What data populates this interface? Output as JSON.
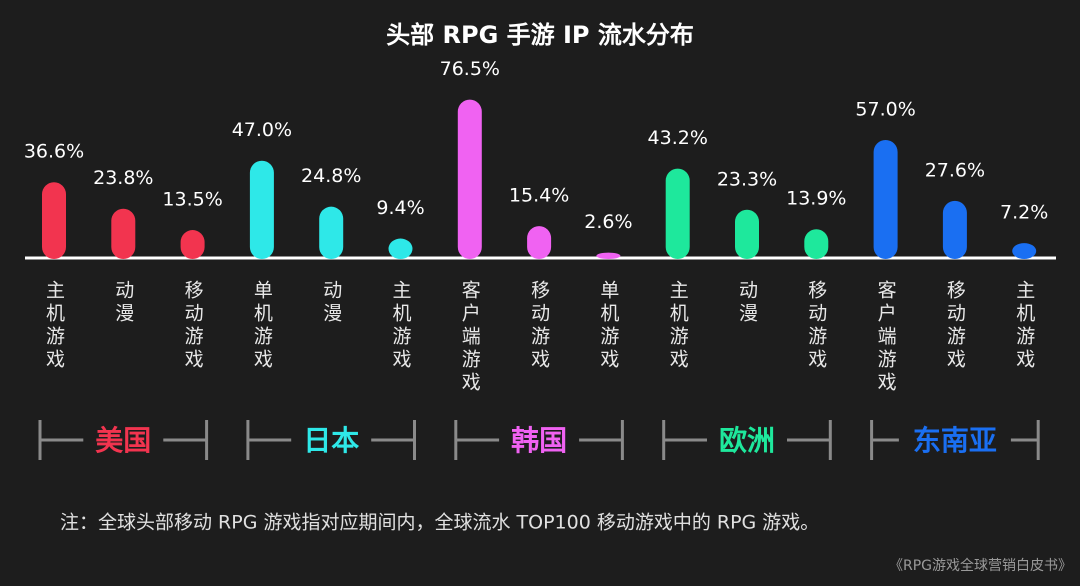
{
  "chart_data": {
    "type": "bar",
    "title": "头部 RPG 手游 IP 流水分布",
    "groups": [
      {
        "name": "美国",
        "color": "#f2344f",
        "categories": [
          "主机游戏",
          "动漫",
          "移动游戏"
        ],
        "values": [
          36.6,
          23.8,
          13.5
        ],
        "value_labels": [
          "36.6%",
          "23.8%",
          "13.5%"
        ]
      },
      {
        "name": "日本",
        "color": "#2ee8e8",
        "categories": [
          "单机游戏",
          "动漫",
          "主机游戏"
        ],
        "values": [
          47.0,
          24.8,
          9.4
        ],
        "value_labels": [
          "47.0%",
          "24.8%",
          "9.4%"
        ]
      },
      {
        "name": "韩国",
        "color": "#f062f2",
        "categories": [
          "客户端游戏",
          "移动游戏",
          "单机游戏"
        ],
        "values": [
          76.5,
          15.4,
          2.6
        ],
        "value_labels": [
          "76.5%",
          "15.4%",
          "2.6%"
        ]
      },
      {
        "name": "欧洲",
        "color": "#1ee89c",
        "categories": [
          "主机游戏",
          "动漫",
          "移动游戏"
        ],
        "values": [
          43.2,
          23.3,
          13.9
        ],
        "value_labels": [
          "43.2%",
          "23.3%",
          "13.9%"
        ]
      },
      {
        "name": "东南亚",
        "color": "#1a6ff2",
        "categories": [
          "客户端游戏",
          "移动游戏",
          "主机游戏"
        ],
        "values": [
          57.0,
          27.6,
          7.2
        ],
        "value_labels": [
          "57.0%",
          "27.6%",
          "7.2%"
        ]
      }
    ]
  },
  "footnote": "注：全球头部移动 RPG 游戏指对应期间内，全球流水 TOP100 移动游戏中的 RPG 游戏。",
  "source": "《RPG游戏全球营销白皮书》"
}
